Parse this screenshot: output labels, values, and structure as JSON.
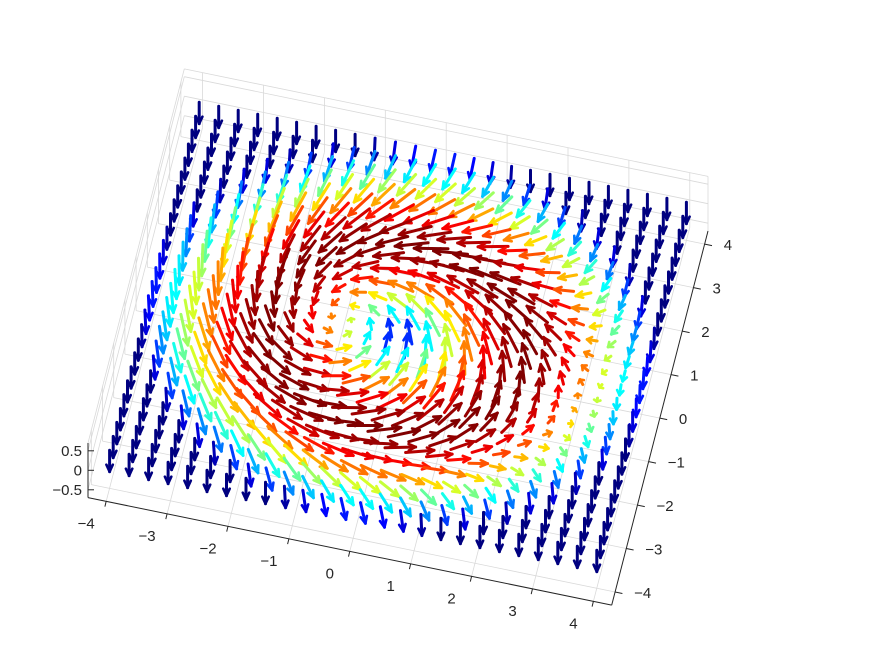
{
  "chart_data": {
    "type": "quiver3d",
    "title": "",
    "xlabel": "",
    "ylabel": "",
    "zlabel": "",
    "colormap": "jet",
    "grid": true,
    "xlim": [
      -4.3,
      4.3
    ],
    "ylim": [
      -4.3,
      4.3
    ],
    "zlim": [
      -0.7,
      0.7
    ],
    "x_ticks": [
      "−4",
      "−3",
      "−2",
      "−1",
      "0",
      "1",
      "2",
      "3",
      "4"
    ],
    "y_ticks": [
      "−4",
      "−3",
      "−2",
      "−1",
      "0",
      "1",
      "2",
      "3",
      "4"
    ],
    "z_ticks": [
      "−0.5",
      "0",
      "0.5"
    ],
    "x_tick_values": [
      -4,
      -3,
      -2,
      -1,
      0,
      1,
      2,
      3,
      4
    ],
    "y_tick_values": [
      -4,
      -3,
      -2,
      -1,
      0,
      1,
      2,
      3,
      4
    ],
    "z_tick_values": [
      -0.5,
      0,
      0.5
    ],
    "field": {
      "description_of_values": "unit-length skyrmion-like vortex: in-plane azimuthal rotation, z-component cos(pi*r/R)",
      "grid_range": [
        -4,
        4
      ],
      "grid_step": 0.32,
      "skyrmion_radius": 4.2
    }
  }
}
